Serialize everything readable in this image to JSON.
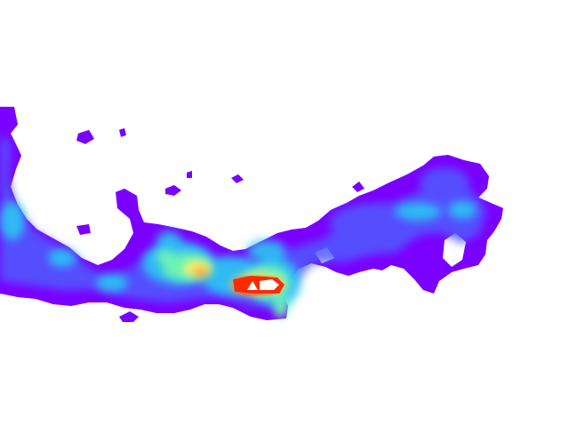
{
  "map": {
    "type": "density-heatmap",
    "background": "#ffffff",
    "color_scale": [
      "#7a00ff",
      "#4f5cff",
      "#29c6f2",
      "#6ff5b4",
      "#fff36b",
      "#ff9b3d",
      "#ff2a00",
      "#ffffff"
    ],
    "legend": "none",
    "labels": "none"
  }
}
